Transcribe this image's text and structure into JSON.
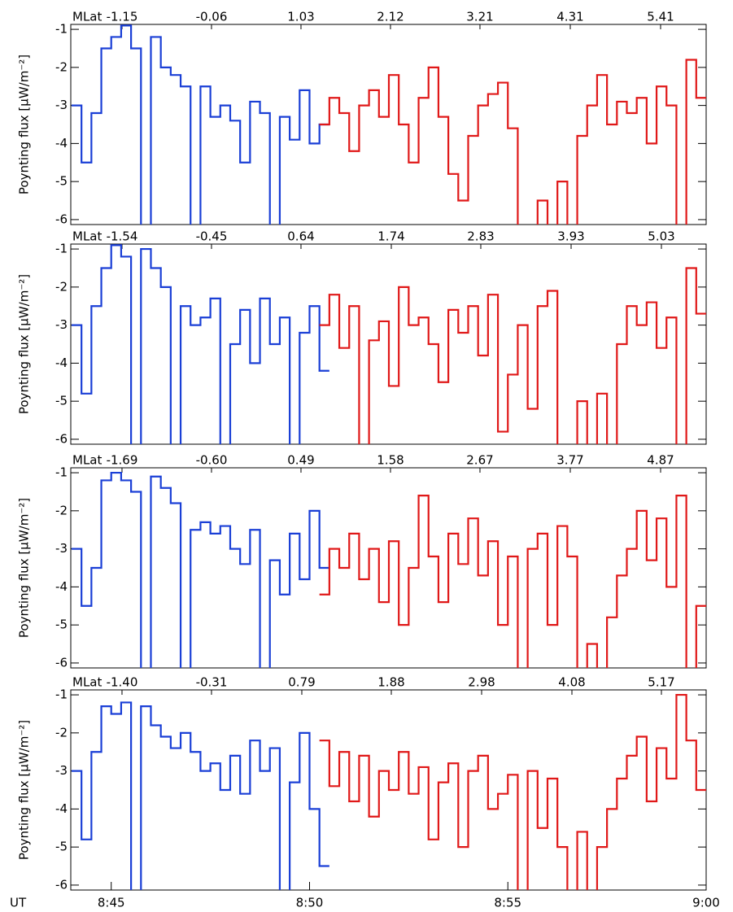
{
  "chart_data": [
    {
      "type": "line",
      "ylabel": "Poynting flux [μW/m⁻²]",
      "ylim": [
        -6.13,
        -0.87
      ],
      "yticks": [
        -6,
        -5,
        -4,
        -3,
        -2,
        -1
      ],
      "xlim": [
        43.98,
        60
      ],
      "x2label": "MLat",
      "x2lim": [
        -1.774,
        5.965
      ],
      "x2ticks": [
        -1.15,
        -0.06,
        1.03,
        2.12,
        3.21,
        4.31,
        5.41
      ],
      "x": [
        44,
        44.25,
        44.5,
        44.75,
        45,
        45.25,
        45.5,
        45.75,
        46,
        46.25,
        46.5,
        46.75,
        47,
        47.25,
        47.5,
        47.75,
        48,
        48.25,
        48.5,
        48.75,
        49,
        49.25,
        49.5,
        49.75,
        50,
        50.25,
        50.5,
        50.75,
        51,
        51.25,
        51.5,
        51.75,
        52,
        52.25,
        52.5,
        52.75,
        53,
        53.25,
        53.5,
        53.75,
        54,
        54.25,
        54.5,
        54.75,
        55,
        55.25,
        55.5,
        55.75,
        56,
        56.25,
        56.5,
        56.75,
        57,
        57.25,
        57.5,
        57.75,
        58,
        58.25,
        58.5,
        58.75,
        59,
        59.25,
        59.5,
        59.75
      ],
      "series": [
        {
          "color": "#1a3fd6",
          "values": [
            -3.0,
            -4.5,
            -3.2,
            -1.5,
            -1.2,
            -0.9,
            -1.5,
            -6.3,
            -1.2,
            -2.0,
            -2.2,
            -2.5,
            -6.3,
            -2.5,
            -3.3,
            -3.0,
            -3.4,
            -4.5,
            -2.9,
            -3.2,
            -6.3,
            -3.3,
            -3.9,
            -2.6,
            -4.0,
            -3.5,
            null,
            null,
            null,
            null,
            null,
            null,
            null,
            null,
            null,
            null,
            null,
            null,
            null,
            null,
            null,
            null,
            null,
            null,
            null,
            null,
            null,
            null,
            null,
            null,
            null,
            null,
            null,
            null,
            null,
            null,
            null,
            null,
            null,
            null,
            null,
            null,
            null,
            null
          ]
        },
        {
          "color": "#e01818",
          "values": [
            null,
            null,
            null,
            null,
            null,
            null,
            null,
            null,
            null,
            null,
            null,
            null,
            null,
            null,
            null,
            null,
            null,
            null,
            null,
            null,
            null,
            null,
            null,
            null,
            null,
            -3.5,
            -2.8,
            -3.2,
            -4.2,
            -3.0,
            -2.6,
            -3.3,
            -2.2,
            -3.5,
            -4.5,
            -2.8,
            -2.0,
            -3.3,
            -4.8,
            -5.5,
            -3.8,
            -3.0,
            -2.7,
            -2.4,
            -3.6,
            -6.3,
            -6.3,
            -5.5,
            -6.3,
            -5.0,
            -6.3,
            -3.8,
            -3.0,
            -2.2,
            -3.5,
            -2.9,
            -3.2,
            -2.8,
            -4.0,
            -2.5,
            -3.0,
            -6.3,
            -1.8,
            -2.8
          ]
        }
      ]
    },
    {
      "type": "line",
      "ylabel": "Poynting flux [μW/m⁻²]",
      "ylim": [
        -6.13,
        -0.87
      ],
      "yticks": [
        -6,
        -5,
        -4,
        -3,
        -2,
        -1
      ],
      "xlim": [
        43.98,
        60
      ],
      "x2label": "MLat",
      "x2lim": [
        -2.164,
        5.575
      ],
      "x2ticks": [
        -1.54,
        -0.45,
        0.64,
        1.74,
        2.83,
        3.93,
        5.03
      ],
      "x": [
        44,
        44.25,
        44.5,
        44.75,
        45,
        45.25,
        45.5,
        45.75,
        46,
        46.25,
        46.5,
        46.75,
        47,
        47.25,
        47.5,
        47.75,
        48,
        48.25,
        48.5,
        48.75,
        49,
        49.25,
        49.5,
        49.75,
        50,
        50.25,
        50.5,
        50.75,
        51,
        51.25,
        51.5,
        51.75,
        52,
        52.25,
        52.5,
        52.75,
        53,
        53.25,
        53.5,
        53.75,
        54,
        54.25,
        54.5,
        54.75,
        55,
        55.25,
        55.5,
        55.75,
        56,
        56.25,
        56.5,
        56.75,
        57,
        57.25,
        57.5,
        57.75,
        58,
        58.25,
        58.5,
        58.75,
        59,
        59.25,
        59.5,
        59.75
      ],
      "series": [
        {
          "color": "#1a3fd6",
          "values": [
            -3.0,
            -4.8,
            -2.5,
            -1.5,
            -0.9,
            -1.2,
            -6.3,
            -1.0,
            -1.5,
            -2.0,
            -6.3,
            -2.5,
            -3.0,
            -2.8,
            -2.3,
            -6.3,
            -3.5,
            -2.6,
            -4.0,
            -2.3,
            -3.5,
            -2.8,
            -6.3,
            -3.2,
            -2.5,
            -4.2,
            null,
            null,
            null,
            null,
            null,
            null,
            null,
            null,
            null,
            null,
            null,
            null,
            null,
            null,
            null,
            null,
            null,
            null,
            null,
            null,
            null,
            null,
            null,
            null,
            null,
            null,
            null,
            null,
            null,
            null,
            null,
            null,
            null,
            null,
            null,
            null,
            null,
            null
          ]
        },
        {
          "color": "#e01818",
          "values": [
            null,
            null,
            null,
            null,
            null,
            null,
            null,
            null,
            null,
            null,
            null,
            null,
            null,
            null,
            null,
            null,
            null,
            null,
            null,
            null,
            null,
            null,
            null,
            null,
            null,
            -3.0,
            -2.2,
            -3.6,
            -2.5,
            -6.3,
            -3.4,
            -2.9,
            -4.6,
            -2.0,
            -3.0,
            -2.8,
            -3.5,
            -4.5,
            -2.6,
            -3.2,
            -2.5,
            -3.8,
            -2.2,
            -5.8,
            -4.3,
            -3.0,
            -5.2,
            -2.5,
            -2.1,
            -6.3,
            -6.3,
            -5.0,
            -6.3,
            -4.8,
            -6.3,
            -3.5,
            -2.5,
            -3.0,
            -2.4,
            -3.6,
            -2.8,
            -6.3,
            -1.5,
            -2.7
          ]
        }
      ]
    },
    {
      "type": "line",
      "ylabel": "Poynting flux [μW/m⁻²]",
      "ylim": [
        -6.13,
        -0.87
      ],
      "yticks": [
        -6,
        -5,
        -4,
        -3,
        -2,
        -1
      ],
      "xlim": [
        43.98,
        60
      ],
      "x2label": "MLat",
      "x2lim": [
        -2.314,
        5.425
      ],
      "x2ticks": [
        -1.69,
        {
          "value": -0.6,
          "label": "-0.60"
        },
        0.49,
        1.58,
        2.67,
        3.77,
        4.87
      ],
      "x": [
        44,
        44.25,
        44.5,
        44.75,
        45,
        45.25,
        45.5,
        45.75,
        46,
        46.25,
        46.5,
        46.75,
        47,
        47.25,
        47.5,
        47.75,
        48,
        48.25,
        48.5,
        48.75,
        49,
        49.25,
        49.5,
        49.75,
        50,
        50.25,
        50.5,
        50.75,
        51,
        51.25,
        51.5,
        51.75,
        52,
        52.25,
        52.5,
        52.75,
        53,
        53.25,
        53.5,
        53.75,
        54,
        54.25,
        54.5,
        54.75,
        55,
        55.25,
        55.5,
        55.75,
        56,
        56.25,
        56.5,
        56.75,
        57,
        57.25,
        57.5,
        57.75,
        58,
        58.25,
        58.5,
        58.75,
        59,
        59.25,
        59.5,
        59.75
      ],
      "series": [
        {
          "color": "#1a3fd6",
          "values": [
            -3.0,
            -4.5,
            -3.5,
            -1.2,
            -1.0,
            -1.2,
            -1.5,
            -6.3,
            -1.1,
            -1.4,
            -1.8,
            -6.3,
            -2.5,
            -2.3,
            -2.6,
            -2.4,
            -3.0,
            -3.4,
            -2.5,
            -6.3,
            -3.3,
            -4.2,
            -2.6,
            -3.8,
            -2.0,
            -3.5,
            null,
            null,
            null,
            null,
            null,
            null,
            null,
            null,
            null,
            null,
            null,
            null,
            null,
            null,
            null,
            null,
            null,
            null,
            null,
            null,
            null,
            null,
            null,
            null,
            null,
            null,
            null,
            null,
            null,
            null,
            null,
            null,
            null,
            null,
            null,
            null,
            null,
            null
          ]
        },
        {
          "color": "#e01818",
          "values": [
            null,
            null,
            null,
            null,
            null,
            null,
            null,
            null,
            null,
            null,
            null,
            null,
            null,
            null,
            null,
            null,
            null,
            null,
            null,
            null,
            null,
            null,
            null,
            null,
            null,
            -4.2,
            -3.0,
            -3.5,
            -2.6,
            -3.8,
            -3.0,
            -4.4,
            -2.8,
            -5.0,
            -3.5,
            -1.6,
            -3.2,
            -4.4,
            -2.6,
            -3.4,
            -2.2,
            -3.7,
            -2.8,
            -5.0,
            -3.2,
            -6.3,
            -3.0,
            -2.6,
            -5.0,
            -2.4,
            -3.2,
            -6.3,
            -5.5,
            -6.3,
            -4.8,
            -3.7,
            -3.0,
            -2.0,
            -3.3,
            -2.2,
            -4.0,
            -1.6,
            -6.3,
            -4.5
          ]
        }
      ]
    },
    {
      "type": "line",
      "ylabel": "Poynting flux [μW/m⁻²]",
      "ylim": [
        -6.13,
        -0.87
      ],
      "yticks": [
        -6,
        -5,
        -4,
        -3,
        -2,
        -1
      ],
      "xlim": [
        43.98,
        60
      ],
      "xlabel": "UT",
      "xticks": [
        {
          "value": 45,
          "label": "8:45"
        },
        {
          "value": 50,
          "label": "8:50"
        },
        {
          "value": 55,
          "label": "8:55"
        },
        {
          "value": 60,
          "label": "9:00"
        }
      ],
      "x2label": "MLat",
      "x2lim": [
        -2.024,
        5.715
      ],
      "x2ticks": [
        {
          "value": -1.4,
          "label": "-1.40"
        },
        -0.31,
        0.79,
        1.88,
        2.98,
        4.08,
        5.17
      ],
      "x": [
        44,
        44.25,
        44.5,
        44.75,
        45,
        45.25,
        45.5,
        45.75,
        46,
        46.25,
        46.5,
        46.75,
        47,
        47.25,
        47.5,
        47.75,
        48,
        48.25,
        48.5,
        48.75,
        49,
        49.25,
        49.5,
        49.75,
        50,
        50.25,
        50.5,
        50.75,
        51,
        51.25,
        51.5,
        51.75,
        52,
        52.25,
        52.5,
        52.75,
        53,
        53.25,
        53.5,
        53.75,
        54,
        54.25,
        54.5,
        54.75,
        55,
        55.25,
        55.5,
        55.75,
        56,
        56.25,
        56.5,
        56.75,
        57,
        57.25,
        57.5,
        57.75,
        58,
        58.25,
        58.5,
        58.75,
        59,
        59.25,
        59.5,
        59.75
      ],
      "series": [
        {
          "color": "#1a3fd6",
          "values": [
            -3.0,
            -4.8,
            -2.5,
            -1.3,
            -1.5,
            -1.2,
            -6.3,
            -1.3,
            -1.8,
            -2.1,
            -2.4,
            -2.0,
            -2.5,
            -3.0,
            -2.8,
            -3.5,
            -2.6,
            -3.6,
            -2.2,
            -3.0,
            -2.4,
            -6.3,
            -3.3,
            -2.0,
            -4.0,
            -5.5,
            null,
            null,
            null,
            null,
            null,
            null,
            null,
            null,
            null,
            null,
            null,
            null,
            null,
            null,
            null,
            null,
            null,
            null,
            null,
            null,
            null,
            null,
            null,
            null,
            null,
            null,
            null,
            null,
            null,
            null,
            null,
            null,
            null,
            null,
            null,
            null,
            null,
            null
          ]
        },
        {
          "color": "#e01818",
          "values": [
            null,
            null,
            null,
            null,
            null,
            null,
            null,
            null,
            null,
            null,
            null,
            null,
            null,
            null,
            null,
            null,
            null,
            null,
            null,
            null,
            null,
            null,
            null,
            null,
            null,
            -2.2,
            -3.4,
            -2.5,
            -3.8,
            -2.6,
            -4.2,
            -3.0,
            -3.5,
            -2.5,
            -3.6,
            -2.9,
            -4.8,
            -3.3,
            -2.8,
            -5.0,
            -3.0,
            -2.6,
            -4.0,
            -3.6,
            -3.1,
            -6.3,
            -3.0,
            -4.5,
            -3.2,
            -5.0,
            -6.3,
            -4.6,
            -6.3,
            -5.0,
            -4.0,
            -3.2,
            -2.6,
            -2.1,
            -3.8,
            -2.4,
            -3.2,
            -1.0,
            -2.2,
            -3.5
          ]
        }
      ]
    }
  ]
}
